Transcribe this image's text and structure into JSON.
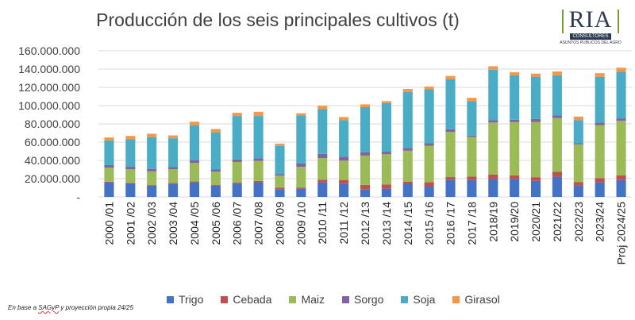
{
  "title": "Producción de los seis principales cultivos (t)",
  "logo": {
    "name": "RIA",
    "subtitle": "CONSULTORES",
    "tagline": "ASUNTOS PUBLICOS DEL AGRO"
  },
  "source_note": {
    "prefix": "En base a ",
    "org": "SAGyP",
    "suffix": " y proyección propia 24/25"
  },
  "chart_data": {
    "type": "stacked-bar",
    "title": "Producción de los seis principales cultivos (t)",
    "categories": [
      "2000 /01",
      "2001 /02",
      "2002 /03",
      "2003 /04",
      "2004 /05",
      "2005 /06",
      "2006 /07",
      "2007 /08",
      "2008 /09",
      "2009 /10",
      "2010 /11",
      "2011 /12",
      "2012 /13",
      "2013 /14",
      "2014 /15",
      "2015 /16",
      "2016 /17",
      "2017 /18",
      "2018/19",
      "2019/20",
      "2020/21",
      "2021/22",
      "2022/23",
      "2023/24",
      "Proj 2024/25"
    ],
    "ylim": [
      0,
      160000000
    ],
    "yticks": [
      "-",
      "20.000.000",
      "40.000.000",
      "60.000.000",
      "80.000.000",
      "100.000.000",
      "120.000.000",
      "140.000.000",
      "160.000.000"
    ],
    "ytick_values": [
      0,
      20000000,
      40000000,
      60000000,
      80000000,
      100000000,
      120000000,
      140000000,
      160000000
    ],
    "grid": true,
    "legend_position": "bottom",
    "series": [
      {
        "name": "Trigo",
        "color": "#4472c4",
        "values": [
          16.0,
          15.0,
          12.5,
          14.5,
          16.0,
          12.5,
          14.5,
          16.0,
          8.5,
          9.0,
          15.9,
          14.5,
          8.0,
          9.0,
          13.9,
          11.3,
          18.4,
          18.5,
          19.5,
          19.8,
          17.6,
          22.1,
          12.5,
          15.9,
          18.5
        ]
      },
      {
        "name": "Cebada",
        "color": "#c0504d",
        "values": [
          0.7,
          0.5,
          0.5,
          0.9,
          0.9,
          0.8,
          1.3,
          1.5,
          1.7,
          1.3,
          2.9,
          4.1,
          5.2,
          4.7,
          2.9,
          4.9,
          3.3,
          3.7,
          5.1,
          3.7,
          4.0,
          5.3,
          3.6,
          4.8,
          5.0
        ]
      },
      {
        "name": "Maiz",
        "color": "#9bbb59",
        "values": [
          15.4,
          14.7,
          15.0,
          15.0,
          20.5,
          14.4,
          22.5,
          22.0,
          13.1,
          22.7,
          23.8,
          21.2,
          32.1,
          33.0,
          33.8,
          39.8,
          49.5,
          43.5,
          56.9,
          58.4,
          60.5,
          59.0,
          41.4,
          58.0,
          60.0
        ]
      },
      {
        "name": "Sorgo",
        "color": "#8064a2",
        "values": [
          2.9,
          2.8,
          2.7,
          2.2,
          2.9,
          2.3,
          2.8,
          2.9,
          1.5,
          3.6,
          4.5,
          4.3,
          3.7,
          2.8,
          3.1,
          3.0,
          2.9,
          1.5,
          2.5,
          2.6,
          3.3,
          3.0,
          1.5,
          2.7,
          2.5
        ]
      },
      {
        "name": "Soja",
        "color": "#4bacc6",
        "values": [
          26.9,
          30.0,
          34.8,
          31.6,
          38.3,
          40.5,
          47.5,
          46.2,
          31.0,
          52.7,
          49.0,
          40.1,
          49.3,
          53.4,
          61.4,
          58.8,
          54.9,
          37.8,
          55.3,
          48.8,
          46.2,
          43.9,
          25.0,
          50.2,
          51.0
        ]
      },
      {
        "name": "Girasol",
        "color": "#f79646",
        "values": [
          3.2,
          3.8,
          3.7,
          3.2,
          3.8,
          3.8,
          3.5,
          4.6,
          2.5,
          2.3,
          3.7,
          3.3,
          3.1,
          2.0,
          3.2,
          3.0,
          3.5,
          3.5,
          3.8,
          3.2,
          3.4,
          4.1,
          4.0,
          3.9,
          4.5
        ]
      }
    ],
    "units_multiplier": 1000000
  }
}
